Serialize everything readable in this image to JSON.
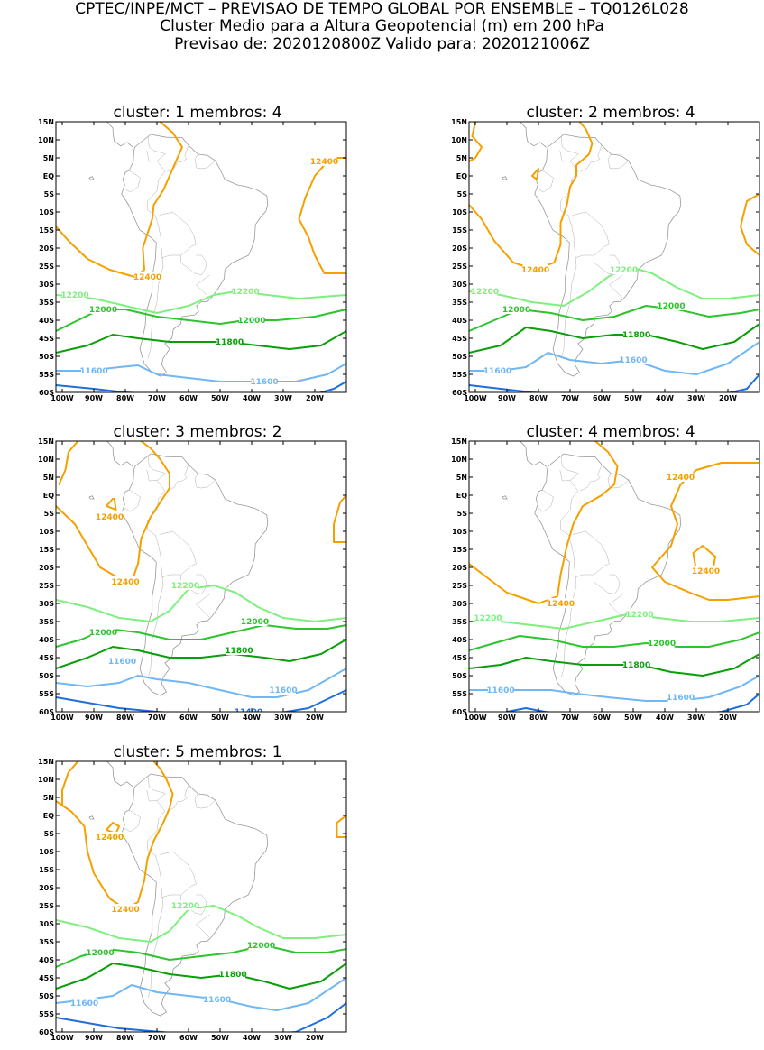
{
  "header": {
    "line1": "CPTEC/INPE/MCT – PREVISAO DE TEMPO GLOBAL POR ENSEMBLE – TQ0126L028",
    "line2": "Cluster Medio para a Altura Geopotencial (m) em 200 hPa",
    "line3": "Previsao de: 2020120800Z    Valido para: 2020121006Z"
  },
  "axes": {
    "lat_ticks": [
      "15N",
      "10N",
      "5N",
      "EQ",
      "5S",
      "10S",
      "15S",
      "20S",
      "25S",
      "30S",
      "35S",
      "40S",
      "45S",
      "50S",
      "55S",
      "60S"
    ],
    "lon_ticks": [
      "100W",
      "90W",
      "80W",
      "70W",
      "60W",
      "50W",
      "40W",
      "30W",
      "20W"
    ]
  },
  "colors": {
    "c12400": "#f5a000",
    "c12200": "#7ef07e",
    "c12000": "#2ec42e",
    "c11800": "#0a9e0a",
    "c11600": "#6fb7f5",
    "c11400": "#1e6fdc"
  },
  "panels": [
    {
      "title": "cluster: 1   membros: 4",
      "labels": [
        {
          "text": "12400",
          "color": "c12400",
          "lon": -17,
          "lat": 4
        },
        {
          "text": "12400",
          "color": "c12400",
          "lon": -73,
          "lat": -28
        },
        {
          "text": "12200",
          "color": "c12200",
          "lon": -96,
          "lat": -33
        },
        {
          "text": "12200",
          "color": "c12200",
          "lon": -42,
          "lat": -32
        },
        {
          "text": "12000",
          "color": "c12000",
          "lon": -87,
          "lat": -37
        },
        {
          "text": "12000",
          "color": "c12000",
          "lon": -40,
          "lat": -40
        },
        {
          "text": "11800",
          "color": "c11800",
          "lon": -47,
          "lat": -46
        },
        {
          "text": "11600",
          "color": "c11600",
          "lon": -90,
          "lat": -54
        },
        {
          "text": "11600",
          "color": "c11600",
          "lon": -36,
          "lat": -57
        }
      ]
    },
    {
      "title": "cluster: 2   membros: 4",
      "labels": [
        {
          "text": "12400",
          "color": "c12400",
          "lon": -81,
          "lat": -26
        },
        {
          "text": "12200",
          "color": "c12200",
          "lon": -53,
          "lat": -26
        },
        {
          "text": "12200",
          "color": "c12200",
          "lon": -97,
          "lat": -32
        },
        {
          "text": "12000",
          "color": "c12000",
          "lon": -87,
          "lat": -37
        },
        {
          "text": "12000",
          "color": "c12000",
          "lon": -38,
          "lat": -36
        },
        {
          "text": "11800",
          "color": "c11800",
          "lon": -49,
          "lat": -44
        },
        {
          "text": "11600",
          "color": "c11600",
          "lon": -93,
          "lat": -54
        },
        {
          "text": "11600",
          "color": "c11600",
          "lon": -50,
          "lat": -51
        }
      ]
    },
    {
      "title": "cluster: 3   membros: 2",
      "labels": [
        {
          "text": "12400",
          "color": "c12400",
          "lon": -85,
          "lat": -6
        },
        {
          "text": "12400",
          "color": "c12400",
          "lon": -80,
          "lat": -24
        },
        {
          "text": "12200",
          "color": "c12200",
          "lon": -61,
          "lat": -25
        },
        {
          "text": "12200",
          "color": "c12200",
          "lon": -39,
          "lat": -35
        },
        {
          "text": "12000",
          "color": "c12000",
          "lon": -87,
          "lat": -38
        },
        {
          "text": "12000",
          "color": "c12000",
          "lon": -39,
          "lat": -35
        },
        {
          "text": "11800",
          "color": "c11800",
          "lon": -44,
          "lat": -43
        },
        {
          "text": "11600",
          "color": "c11600",
          "lon": -81,
          "lat": -46
        },
        {
          "text": "11600",
          "color": "c11600",
          "lon": -30,
          "lat": -54
        },
        {
          "text": "11400",
          "color": "c11400",
          "lon": -41,
          "lat": -60
        }
      ]
    },
    {
      "title": "cluster: 4   membros: 4",
      "labels": [
        {
          "text": "12400",
          "color": "c12400",
          "lon": -35,
          "lat": 5
        },
        {
          "text": "12400",
          "color": "c12400",
          "lon": -27,
          "lat": -21
        },
        {
          "text": "12400",
          "color": "c12400",
          "lon": -73,
          "lat": -30
        },
        {
          "text": "12200",
          "color": "c12200",
          "lon": -96,
          "lat": -34
        },
        {
          "text": "12200",
          "color": "c12200",
          "lon": -48,
          "lat": -33
        },
        {
          "text": "12000",
          "color": "c12000",
          "lon": -41,
          "lat": -41
        },
        {
          "text": "11800",
          "color": "c11800",
          "lon": -49,
          "lat": -47
        },
        {
          "text": "11600",
          "color": "c11600",
          "lon": -92,
          "lat": -54
        },
        {
          "text": "11600",
          "color": "c11600",
          "lon": -35,
          "lat": -56
        }
      ]
    },
    {
      "title": "cluster: 5   membros: 1",
      "labels": [
        {
          "text": "12400",
          "color": "c12400",
          "lon": -85,
          "lat": -6
        },
        {
          "text": "12400",
          "color": "c12400",
          "lon": -80,
          "lat": -26
        },
        {
          "text": "12200",
          "color": "c12200",
          "lon": -61,
          "lat": -25
        },
        {
          "text": "12000",
          "color": "c12000",
          "lon": -88,
          "lat": -38
        },
        {
          "text": "12000",
          "color": "c12000",
          "lon": -37,
          "lat": -36
        },
        {
          "text": "11800",
          "color": "c11800",
          "lon": -46,
          "lat": -44
        },
        {
          "text": "11600",
          "color": "c11600",
          "lon": -93,
          "lat": -52
        },
        {
          "text": "11600",
          "color": "c11600",
          "lon": -51,
          "lat": -51
        }
      ]
    }
  ]
}
